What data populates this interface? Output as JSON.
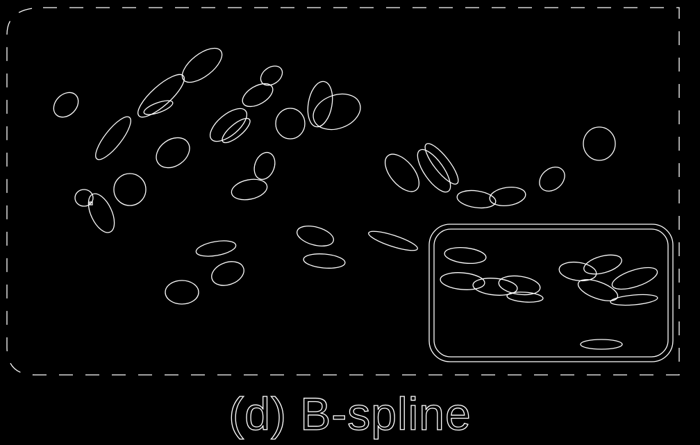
{
  "figure": {
    "caption": "(d) B-spline",
    "background_color": "#000000",
    "line_color": "#ffffff"
  }
}
